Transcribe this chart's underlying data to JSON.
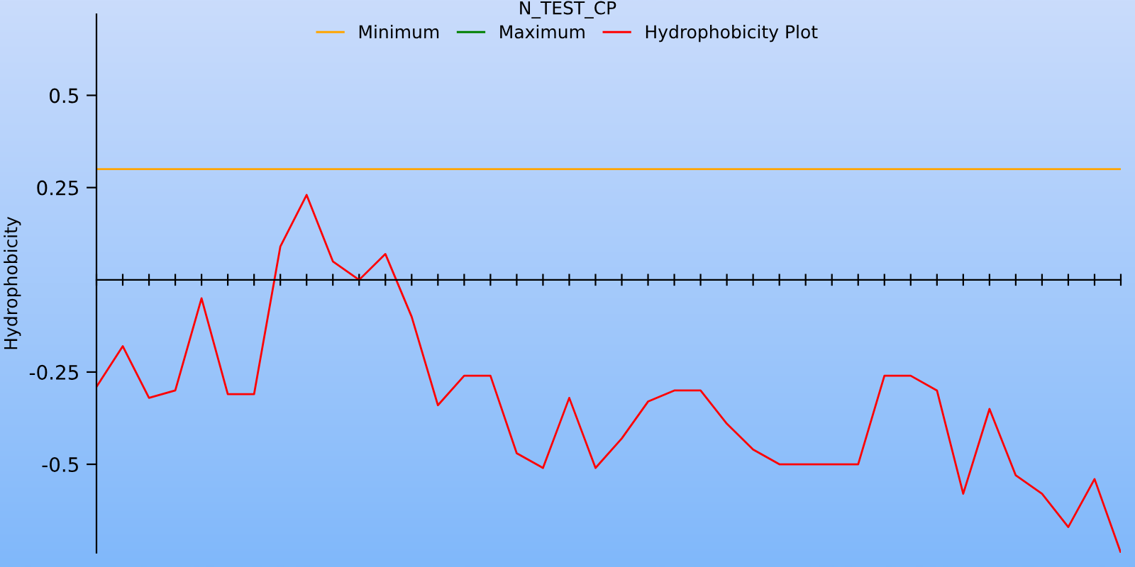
{
  "chart_data": {
    "type": "line",
    "title": "N_TEST_CP",
    "ylabel": "Hydrophobicity",
    "categories": [
      null,
      null,
      null,
      null,
      null,
      null,
      null,
      null,
      null,
      null,
      null,
      null,
      null,
      null,
      null,
      null,
      null,
      null,
      null,
      null,
      null,
      null,
      null,
      null,
      null,
      null,
      null,
      null,
      null,
      null,
      null,
      null,
      null,
      null,
      null,
      null,
      null,
      null,
      null,
      null
    ],
    "series": [
      {
        "name": "Minimum",
        "color": "#ffa500",
        "values": [
          0.3,
          0.3,
          0.3,
          0.3,
          0.3,
          0.3,
          0.3,
          0.3,
          0.3,
          0.3,
          0.3,
          0.3,
          0.3,
          0.3,
          0.3,
          0.3,
          0.3,
          0.3,
          0.3,
          0.3,
          0.3,
          0.3,
          0.3,
          0.3,
          0.3,
          0.3,
          0.3,
          0.3,
          0.3,
          0.3,
          0.3,
          0.3,
          0.3,
          0.3,
          0.3,
          0.3,
          0.3,
          0.3,
          0.3,
          0.3
        ]
      },
      {
        "name": "Maximum",
        "color": "#008000",
        "values": [
          null,
          null,
          null,
          null,
          null,
          null,
          null,
          null,
          null,
          null,
          null,
          null,
          null,
          null,
          null,
          null,
          null,
          null,
          null,
          null,
          null,
          null,
          null,
          null,
          null,
          null,
          null,
          null,
          null,
          null,
          null,
          null,
          null,
          null,
          null,
          null,
          null,
          null,
          null,
          null
        ]
      },
      {
        "name": "Hydrophobicity Plot",
        "color": "#ff0000",
        "values": [
          -0.29,
          -0.18,
          -0.32,
          -0.3,
          -0.05,
          -0.31,
          -0.31,
          0.09,
          0.23,
          0.05,
          0.0,
          0.07,
          -0.1,
          -0.34,
          -0.26,
          -0.26,
          -0.47,
          -0.51,
          -0.32,
          -0.51,
          -0.43,
          -0.33,
          -0.3,
          -0.3,
          -0.39,
          -0.46,
          -0.5,
          -0.5,
          -0.5,
          -0.5,
          -0.26,
          -0.26,
          -0.3,
          -0.58,
          -0.35,
          -0.53,
          -0.58,
          -0.67,
          -0.54,
          -0.74
        ]
      }
    ],
    "ylim": [
      -0.74,
      0.72
    ],
    "yticks": [
      -0.5,
      -0.25,
      0.25,
      0.5
    ],
    "grid": false,
    "legend": "top",
    "marker": "none",
    "line_style": "solid"
  }
}
